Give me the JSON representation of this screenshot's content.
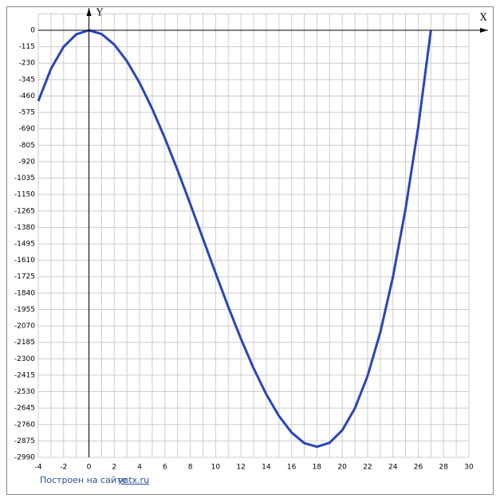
{
  "chart_data": {
    "type": "line",
    "x_axis_label": "X",
    "y_axis_label": "Y",
    "footer": "Построен на сайте",
    "footer_link": "yotx.ru",
    "x": [
      -4,
      -3,
      -2,
      -1,
      0,
      1,
      2,
      3,
      4,
      5,
      6,
      7,
      8,
      9,
      10,
      11,
      12,
      13,
      14,
      15,
      16,
      17,
      18,
      19,
      20,
      21,
      22,
      23,
      24,
      25,
      26,
      27
    ],
    "series": [
      {
        "color": "#2a44b8",
        "values": [
          -496,
          -270,
          -116,
          -28,
          0,
          -26,
          -100,
          -216,
          -368,
          -550,
          -756,
          -980,
          -1216,
          -1458,
          -1700,
          -1936,
          -2160,
          -2366,
          -2548,
          -2700,
          -2816,
          -2890,
          -2916,
          -2888,
          -2800,
          -2646,
          -2420,
          -2116,
          -1728,
          -1250,
          -676,
          0
        ]
      }
    ],
    "xlim": [
      -4,
      30
    ],
    "ylim": [
      -2990,
      0
    ],
    "xticks": [
      -4,
      -2,
      0,
      2,
      4,
      6,
      8,
      10,
      12,
      14,
      16,
      18,
      20,
      22,
      24,
      26,
      28,
      30
    ],
    "yticks": [
      0,
      -115,
      -230,
      -345,
      -460,
      -575,
      -690,
      -805,
      -920,
      -1035,
      -1150,
      -1265,
      -1380,
      -1495,
      -1610,
      -1725,
      -1840,
      -1955,
      -2070,
      -2185,
      -2300,
      -2415,
      -2530,
      -2645,
      -2760,
      -2875,
      -2990
    ],
    "grid": true
  }
}
